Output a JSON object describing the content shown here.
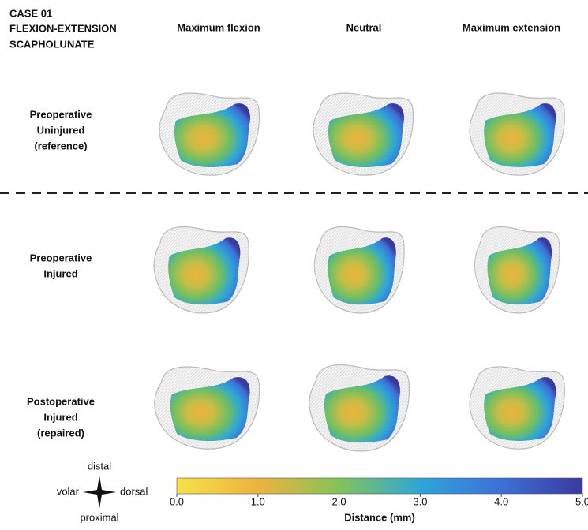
{
  "title": [
    "CASE 01",
    "FLEXION-EXTENSION",
    "SCAPHOLUNATE"
  ],
  "columns": [
    "Maximum flexion",
    "Neutral",
    "Maximum extension"
  ],
  "rows": [
    [
      "Preoperative",
      "Uninjured",
      "(reference)"
    ],
    [
      "Preoperative",
      "Injured"
    ],
    [
      "Postoperative",
      "Injured",
      "(repaired)"
    ]
  ],
  "compass": {
    "top": "distal",
    "left": "volar",
    "right": "dorsal",
    "bottom": "proximal"
  },
  "colorbar": {
    "label": "Distance (mm)",
    "range": [
      0,
      5
    ],
    "ticks": [
      {
        "value": 0,
        "label": "0.0"
      },
      {
        "value": 1,
        "label": "1.0"
      },
      {
        "value": 2,
        "label": "2.0"
      },
      {
        "value": 3,
        "label": "3.0"
      },
      {
        "value": 4,
        "label": "4.0"
      },
      {
        "value": 5,
        "label": "5.0"
      }
    ],
    "colors": [
      "#f6e24a",
      "#eeb23e",
      "#84c35a",
      "#2ea5d8",
      "#3d70d8",
      "#3a3a9c"
    ]
  }
}
